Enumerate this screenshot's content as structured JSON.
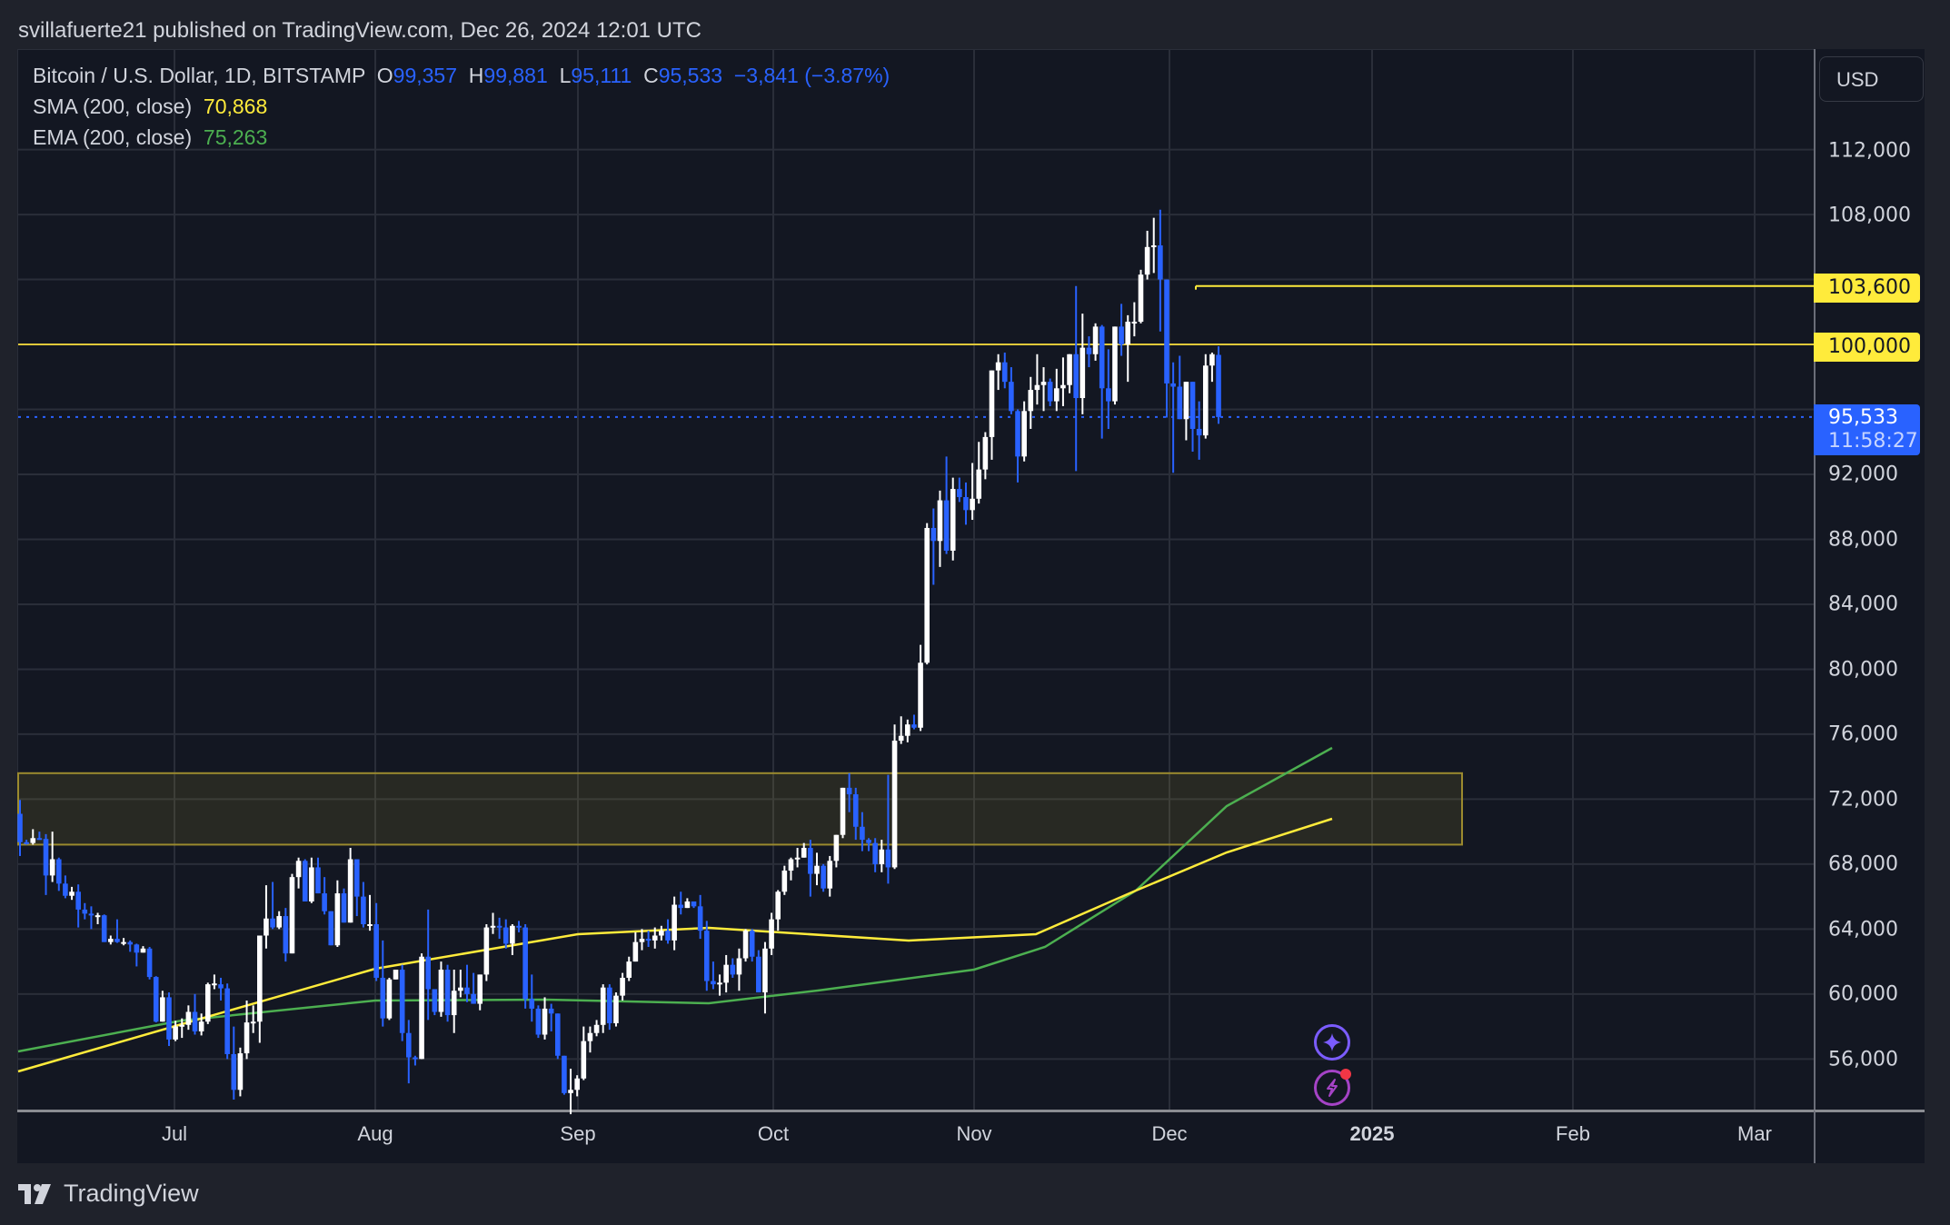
{
  "header": {
    "publisher_line": "svillafuerte21 published on TradingView.com, Dec 26, 2024 12:01 UTC"
  },
  "legend": {
    "symbol": "Bitcoin / U.S. Dollar, 1D, BITSTAMP",
    "open_label": "O",
    "open": "99,357",
    "high_label": "H",
    "high": "99,881",
    "low_label": "L",
    "low": "95,111",
    "close_label": "C",
    "close": "95,533",
    "change": "−3,841 (−3.87%)",
    "sma_label": "SMA (200, close)",
    "sma_value": "70,868",
    "ema_label": "EMA (200, close)",
    "ema_value": "75,263"
  },
  "price_axis": {
    "currency_button": "USD",
    "ticks": [
      "112,000",
      "108,000",
      "92,000",
      "88,000",
      "84,000",
      "80,000",
      "76,000",
      "72,000",
      "68,000",
      "64,000",
      "60,000",
      "56,000"
    ],
    "tags": {
      "level_high": "103,600",
      "level_round": "100,000",
      "last_price": "95,533",
      "countdown": "11:58:27"
    }
  },
  "time_axis": {
    "ticks": [
      "Jul",
      "Aug",
      "Sep",
      "Oct",
      "Nov",
      "Dec",
      "2025",
      "Feb",
      "Mar"
    ]
  },
  "footer": {
    "brand": "TradingView"
  },
  "icons": {
    "assistant": "sparkle-icon",
    "alerts": "lightning-icon"
  },
  "colors": {
    "background": "#131722",
    "up_candle": "#ffffff",
    "down_candle": "#2962ff",
    "sma": "#ffeb3b",
    "ema": "#4caf50",
    "levels": "#ffeb3b",
    "zone_border": "#9b8a2e",
    "grid": "#2a2e39"
  },
  "chart_data": {
    "type": "candlestick",
    "title": "Bitcoin / U.S. Dollar, 1D, BITSTAMP",
    "xlabel": "",
    "ylabel": "USD",
    "ylim": [
      51500,
      115000
    ],
    "x_ticks": [
      "Jul",
      "Aug",
      "Sep",
      "Oct",
      "Nov",
      "Dec",
      "2025",
      "Feb",
      "Mar"
    ],
    "y_ticks": [
      56000,
      60000,
      64000,
      68000,
      72000,
      76000,
      80000,
      84000,
      88000,
      92000,
      96000,
      100000,
      104000,
      108000,
      112000
    ],
    "grid": true,
    "start_date": "2024-06-07",
    "candles_ohlc": [
      [
        71100,
        71950,
        68500,
        69350
      ],
      [
        69350,
        69500,
        69200,
        69300
      ],
      [
        69300,
        70150,
        69200,
        69600
      ],
      [
        69600,
        70000,
        69500,
        69550
      ],
      [
        69550,
        69850,
        66100,
        67300
      ],
      [
        67300,
        70000,
        66900,
        68300
      ],
      [
        68300,
        68400,
        66350,
        66800
      ],
      [
        66800,
        67300,
        65900,
        66050
      ],
      [
        66050,
        66600,
        65800,
        66300
      ],
      [
        66300,
        66750,
        64100,
        65200
      ],
      [
        65200,
        65600,
        64600,
        64950
      ],
      [
        64950,
        65400,
        64000,
        64850
      ],
      [
        64850,
        65000,
        64300,
        64850
      ],
      [
        64850,
        64900,
        63200,
        63200
      ],
      [
        63200,
        63600,
        63050,
        63400
      ],
      [
        63400,
        64600,
        63150,
        63200
      ],
      [
        63200,
        63450,
        63000,
        63200
      ],
      [
        63200,
        63300,
        62600,
        63050
      ],
      [
        63050,
        63100,
        61700,
        62550
      ],
      [
        62550,
        62950,
        62650,
        62800
      ],
      [
        62800,
        62900,
        60900,
        61050
      ],
      [
        61050,
        61100,
        58250,
        58300
      ],
      [
        58300,
        60200,
        58300,
        59800
      ],
      [
        59800,
        60100,
        56800,
        57200
      ],
      [
        57200,
        58350,
        57100,
        58000
      ],
      [
        58000,
        58500,
        57300,
        58100
      ],
      [
        58100,
        59300,
        57800,
        58900
      ],
      [
        58900,
        60000,
        57500,
        57700
      ],
      [
        57700,
        58800,
        57450,
        58300
      ],
      [
        58300,
        60700,
        58150,
        60600
      ],
      [
        60600,
        61200,
        60300,
        60650
      ],
      [
        60600,
        61000,
        59600,
        60350
      ],
      [
        60350,
        60650,
        56000,
        56300
      ],
      [
        56300,
        58000,
        53500,
        54100
      ],
      [
        54100,
        56700,
        53700,
        56350
      ],
      [
        56350,
        59600,
        56000,
        58250
      ],
      [
        58250,
        59300,
        57600,
        58300
      ],
      [
        58300,
        63600,
        57000,
        63600
      ],
      [
        63600,
        66700,
        62800,
        64650
      ],
      [
        64650,
        66900,
        64000,
        64100
      ],
      [
        64100,
        65100,
        64000,
        64800
      ],
      [
        64800,
        65300,
        62000,
        62500
      ],
      [
        62500,
        67400,
        63000,
        67200
      ],
      [
        67200,
        68400,
        66500,
        68200
      ],
      [
        68200,
        68300,
        65700,
        65700
      ],
      [
        65700,
        68400,
        65600,
        67800
      ],
      [
        67800,
        68400,
        66300,
        66200
      ],
      [
        66200,
        67200,
        64900,
        65100
      ],
      [
        65100,
        65100,
        63100,
        63000
      ],
      [
        63000,
        67000,
        62900,
        66200
      ],
      [
        66200,
        66500,
        64500,
        64400
      ],
      [
        64400,
        69000,
        64700,
        68300
      ],
      [
        68300,
        68000,
        64800,
        66000
      ],
      [
        66000,
        66900,
        64100,
        64300
      ],
      [
        64300,
        66100,
        63900,
        64300
      ],
      [
        64300,
        65600,
        60800,
        61000
      ],
      [
        61000,
        63300,
        58000,
        58500
      ],
      [
        58500,
        61000,
        58400,
        60900
      ],
      [
        60900,
        61500,
        61500,
        61500
      ],
      [
        61500,
        61800,
        57100,
        57600
      ],
      [
        57600,
        58400,
        54500,
        56100
      ],
      [
        56100,
        56200,
        55600,
        56000
      ],
      [
        56000,
        62500,
        56100,
        62300
      ],
      [
        62300,
        65200,
        58400,
        60300
      ],
      [
        60300,
        60300,
        58700,
        58900
      ],
      [
        58900,
        62000,
        58600,
        61500
      ],
      [
        61500,
        61800,
        58300,
        58700
      ],
      [
        58700,
        61500,
        57600,
        60200
      ],
      [
        60200,
        61500,
        59800,
        60400
      ],
      [
        60400,
        61800,
        59500,
        60000
      ],
      [
        60000,
        61300,
        59600,
        59400
      ],
      [
        59400,
        61100,
        59000,
        61200
      ],
      [
        61200,
        64300,
        60800,
        64100
      ],
      [
        64100,
        65000,
        63700,
        64200
      ],
      [
        64200,
        64700,
        63400,
        64100
      ],
      [
        64100,
        64600,
        62800,
        63100
      ],
      [
        63100,
        64300,
        62400,
        64200
      ],
      [
        64200,
        64500,
        63800,
        64100
      ],
      [
        64100,
        64300,
        59100,
        59700
      ],
      [
        59700,
        61200,
        58300,
        59100
      ],
      [
        59100,
        59300,
        57300,
        57500
      ],
      [
        57500,
        59800,
        57200,
        59100
      ],
      [
        59100,
        59400,
        57700,
        58800
      ],
      [
        58800,
        58800,
        56000,
        56200
      ],
      [
        56200,
        54300,
        53800,
        53900
      ],
      [
        53900,
        55400,
        52600,
        54100
      ],
      [
        54100,
        55000,
        53700,
        54800
      ],
      [
        54800,
        58000,
        54700,
        57100
      ],
      [
        57100,
        58000,
        56400,
        57600
      ],
      [
        57600,
        58400,
        57400,
        58100
      ],
      [
        58100,
        60600,
        57600,
        60400
      ],
      [
        60400,
        60600,
        57800,
        58200
      ],
      [
        58200,
        60100,
        58000,
        59900
      ],
      [
        59900,
        61300,
        59600,
        61000
      ],
      [
        61000,
        62300,
        60800,
        62000
      ],
      [
        62000,
        63800,
        62300,
        63200
      ],
      [
        63200,
        64000,
        62700,
        63400
      ],
      [
        63400,
        63900,
        62900,
        63300
      ],
      [
        63300,
        64100,
        62800,
        63600
      ],
      [
        63600,
        64200,
        63300,
        63900
      ],
      [
        63900,
        64600,
        63100,
        63300
      ],
      [
        63300,
        66000,
        62700,
        65500
      ],
      [
        65500,
        66300,
        64900,
        65300
      ],
      [
        65300,
        65900,
        65600,
        65700
      ],
      [
        65700,
        65700,
        65300,
        65400
      ],
      [
        65400,
        66100,
        63400,
        63900
      ],
      [
        63900,
        64500,
        60200,
        60800
      ],
      [
        60800,
        62000,
        60300,
        60600
      ],
      [
        60600,
        61200,
        59900,
        60700
      ],
      [
        60700,
        62400,
        60100,
        61800
      ],
      [
        61800,
        62200,
        61000,
        61200
      ],
      [
        61200,
        62800,
        60200,
        62200
      ],
      [
        62200,
        64000,
        62000,
        63900
      ],
      [
        63900,
        64000,
        62000,
        62300
      ],
      [
        62300,
        62700,
        60100,
        60100
      ],
      [
        60100,
        63200,
        58800,
        62800
      ],
      [
        62800,
        65000,
        62400,
        64600
      ],
      [
        64600,
        66400,
        63900,
        66300
      ],
      [
        66300,
        67900,
        66100,
        67600
      ],
      [
        67600,
        68400,
        67000,
        68300
      ],
      [
        68300,
        69000,
        67800,
        68400
      ],
      [
        68400,
        69300,
        68500,
        69000
      ],
      [
        69000,
        69500,
        66000,
        67400
      ],
      [
        67400,
        68700,
        66700,
        67900
      ],
      [
        67900,
        68000,
        66300,
        66500
      ],
      [
        66500,
        68500,
        66000,
        68200
      ],
      [
        68200,
        69700,
        67800,
        69800
      ],
      [
        69800,
        71400,
        69600,
        72700
      ],
      [
        72700,
        73600,
        71200,
        72300
      ],
      [
        72300,
        72700,
        69500,
        70300
      ],
      [
        70300,
        71200,
        68800,
        69500
      ],
      [
        69500,
        69600,
        68800,
        69300
      ],
      [
        69300,
        69600,
        67500,
        68000
      ],
      [
        68000,
        69500,
        67500,
        68900
      ],
      [
        68900,
        73500,
        66800,
        67800
      ],
      [
        67800,
        76600,
        67700,
        75600
      ],
      [
        75600,
        77100,
        75400,
        75900
      ],
      [
        75900,
        76900,
        75500,
        76600
      ],
      [
        76600,
        77200,
        76300,
        76400
      ],
      [
        76400,
        81500,
        76200,
        80400
      ],
      [
        80400,
        89000,
        80300,
        88700
      ],
      [
        88700,
        89900,
        85200,
        87900
      ],
      [
        87900,
        91000,
        86300,
        90400
      ],
      [
        90400,
        93100,
        87100,
        87300
      ],
      [
        87300,
        91800,
        86700,
        91100
      ],
      [
        91100,
        91800,
        90300,
        90600
      ],
      [
        90600,
        91500,
        88900,
        89800
      ],
      [
        89800,
        92700,
        89200,
        90500
      ],
      [
        90500,
        94000,
        90200,
        92300
      ],
      [
        92300,
        94600,
        91700,
        94300
      ],
      [
        94300,
        98200,
        92900,
        98400
      ],
      [
        98400,
        99400,
        97200,
        98900
      ],
      [
        98900,
        99500,
        97300,
        97700
      ],
      [
        97700,
        98600,
        95700,
        95900
      ],
      [
        95900,
        96000,
        91500,
        93100
      ],
      [
        93100,
        96500,
        92800,
        95900
      ],
      [
        95900,
        98000,
        94800,
        97200
      ],
      [
        97200,
        99400,
        96300,
        97500
      ],
      [
        97500,
        98600,
        95900,
        97700
      ],
      [
        97700,
        97900,
        96200,
        96500
      ],
      [
        96500,
        98500,
        95900,
        97300
      ],
      [
        97300,
        99200,
        96200,
        97500
      ],
      [
        97500,
        99300,
        97000,
        99400
      ],
      [
        99400,
        103600,
        92200,
        96700
      ],
      [
        96700,
        101900,
        95700,
        99800
      ],
      [
        99800,
        100500,
        98600,
        99400
      ],
      [
        99400,
        101300,
        99000,
        101100
      ],
      [
        101100,
        101200,
        94200,
        97300
      ],
      [
        97300,
        99700,
        94800,
        96500
      ],
      [
        96500,
        99100,
        96300,
        101100
      ],
      [
        101100,
        102500,
        99300,
        100000
      ],
      [
        100000,
        101800,
        97700,
        101400
      ],
      [
        101400,
        102600,
        100500,
        101400
      ],
      [
        101400,
        104600,
        101300,
        104300
      ],
      [
        104300,
        107000,
        104000,
        106000
      ],
      [
        106000,
        107800,
        104400,
        106100
      ],
      [
        106100,
        108300,
        100800,
        104000
      ],
      [
        104000,
        104000,
        95500,
        97600
      ],
      [
        97600,
        98900,
        92100,
        97400
      ],
      [
        97400,
        99300,
        95400,
        95400
      ],
      [
        95400,
        97400,
        94100,
        97700
      ],
      [
        97700,
        97300,
        93400,
        94800
      ],
      [
        94800,
        96500,
        92900,
        94400
      ],
      [
        94400,
        99400,
        94200,
        98700
      ],
      [
        98700,
        99500,
        97700,
        99400
      ],
      [
        99357,
        99881,
        95111,
        95533
      ]
    ],
    "sma_200": {
      "start": 54900,
      "end": 70868,
      "label": "SMA (200, close)"
    },
    "ema_200": {
      "start": 57000,
      "end": 75263,
      "label": "EMA (200, close)"
    },
    "horizontal_levels": [
      {
        "price": 103600,
        "label": "103,600",
        "starts_at": "2024-12-05"
      },
      {
        "price": 100000,
        "label": "100,000"
      }
    ],
    "zones": [
      {
        "top": 73600,
        "bottom": 69200,
        "x_end": "2025-01-14"
      }
    ],
    "last_price": 95533,
    "countdown": "11:58:27"
  }
}
